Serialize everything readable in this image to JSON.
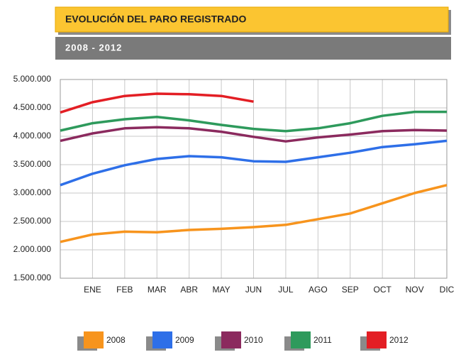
{
  "chart_data": {
    "type": "line",
    "title": "EVOLUCIÓN DEL PARO REGISTRADO",
    "subtitle": "2008 - 2012",
    "categories": [
      null,
      "ENE",
      "FEB",
      "MAR",
      "ABR",
      "MAY",
      "JUN",
      "JUL",
      "AGO",
      "SEP",
      "OCT",
      "NOV",
      "DIC"
    ],
    "series": [
      {
        "name": "2008",
        "color": "#f7941d",
        "values": [
          2140000,
          2270000,
          2320000,
          2310000,
          2350000,
          2370000,
          2400000,
          2440000,
          2540000,
          2640000,
          2820000,
          3000000,
          3140000
        ]
      },
      {
        "name": "2009",
        "color": "#2e6fe8",
        "values": [
          3140000,
          3340000,
          3490000,
          3600000,
          3650000,
          3630000,
          3560000,
          3550000,
          3630000,
          3710000,
          3810000,
          3860000,
          3920000
        ]
      },
      {
        "name": "2010",
        "color": "#8b2a5e",
        "values": [
          3920000,
          4050000,
          4140000,
          4160000,
          4140000,
          4080000,
          3990000,
          3910000,
          3980000,
          4030000,
          4090000,
          4110000,
          4100000
        ]
      },
      {
        "name": "2011",
        "color": "#2e9a5c",
        "values": [
          4100000,
          4230000,
          4300000,
          4340000,
          4280000,
          4200000,
          4130000,
          4090000,
          4140000,
          4230000,
          4360000,
          4430000,
          4430000
        ]
      },
      {
        "name": "2012",
        "color": "#e31e24",
        "values": [
          4420000,
          4600000,
          4710000,
          4750000,
          4740000,
          4710000,
          4610000,
          null,
          null,
          null,
          null,
          null,
          null
        ]
      }
    ],
    "ylim": [
      1500000,
      5000000
    ],
    "yticks": [
      {
        "value": 1500000,
        "label": "1.500.000"
      },
      {
        "value": 2000000,
        "label": "2.000.000"
      },
      {
        "value": 2500000,
        "label": "2.500.000"
      },
      {
        "value": 3000000,
        "label": "3.000.000"
      },
      {
        "value": 3500000,
        "label": "3.500.000"
      },
      {
        "value": 4000000,
        "label": "4.000.000"
      },
      {
        "value": 4500000,
        "label": "4.500.000"
      },
      {
        "value": 5000000,
        "label": "5.000.000"
      }
    ],
    "grid": true
  }
}
